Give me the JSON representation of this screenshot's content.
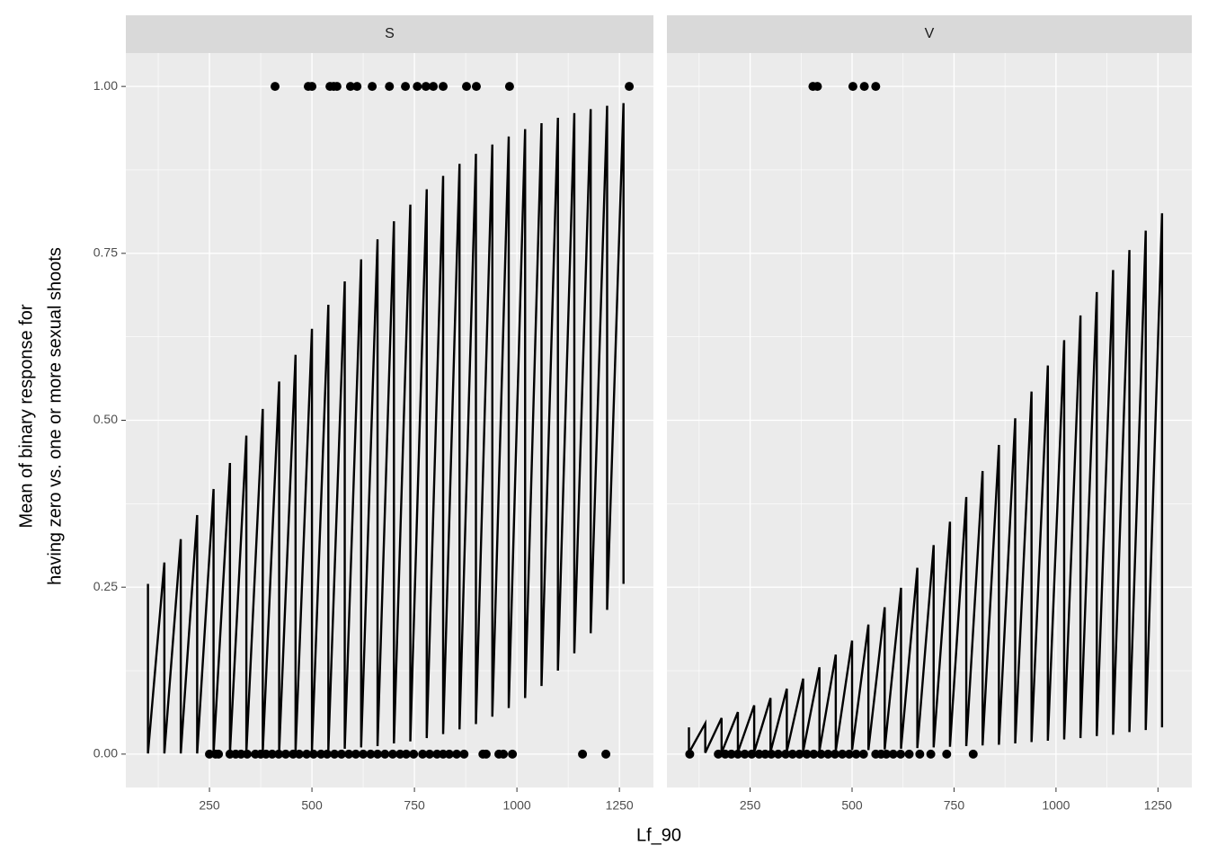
{
  "chart_data": [
    {
      "type": "scatter",
      "title": "S",
      "xlabel": "Lf_90",
      "ylabel": [
        "Mean of binary response for",
        "having zero vs. one or more sexual shoots"
      ],
      "xlim": [
        46,
        1333
      ],
      "xticks": [
        250,
        500,
        750,
        1000,
        1250
      ],
      "xminor": [
        125,
        375,
        625,
        875,
        1125
      ],
      "ylim": [
        -0.05,
        1.05
      ],
      "yticks": [
        {
          "value": 0,
          "label": "0.00"
        },
        {
          "value": 0.25,
          "label": "0.25"
        },
        {
          "value": 0.5,
          "label": "0.50"
        },
        {
          "value": 0.75,
          "label": "0.75"
        },
        {
          "value": 1,
          "label": "1.00"
        }
      ],
      "yminor": [
        0.125,
        0.375,
        0.625,
        0.875
      ],
      "grid": true,
      "series": [
        {
          "type": "line",
          "color": "#000000",
          "x": [
            100,
            100,
            140,
            140,
            180,
            180,
            220,
            220,
            260,
            260,
            300,
            300,
            340,
            340,
            380,
            380,
            420,
            420,
            460,
            460,
            500,
            500,
            540,
            540,
            580,
            580,
            620,
            620,
            660,
            660,
            700,
            700,
            740,
            740,
            780,
            780,
            820,
            820,
            860,
            860,
            900,
            900,
            940,
            940,
            980,
            980,
            1020,
            1020,
            1060,
            1060,
            1100,
            1100,
            1140,
            1140,
            1180,
            1180,
            1220,
            1220,
            1260,
            1260
          ],
          "values": [
            0.255,
            0.001,
            0.287,
            0.001,
            0.322,
            0.001,
            0.358,
            0.001,
            0.397,
            0.001,
            0.436,
            0.002,
            0.477,
            0.002,
            0.517,
            0.003,
            0.558,
            0.003,
            0.598,
            0.004,
            0.637,
            0.005,
            0.673,
            0.006,
            0.708,
            0.008,
            0.741,
            0.01,
            0.771,
            0.012,
            0.798,
            0.016,
            0.823,
            0.019,
            0.846,
            0.024,
            0.866,
            0.03,
            0.884,
            0.037,
            0.899,
            0.045,
            0.913,
            0.056,
            0.925,
            0.069,
            0.936,
            0.084,
            0.945,
            0.102,
            0.953,
            0.125,
            0.96,
            0.151,
            0.966,
            0.181,
            0.971,
            0.216,
            0.975,
            0.255
          ]
        },
        {
          "type": "scatter",
          "color": "#000000",
          "x": [
            410,
            491,
            500,
            544,
            553,
            561,
            594,
            610,
            647,
            689,
            728,
            757,
            778,
            796,
            820,
            877,
            901,
            982,
            1274
          ],
          "values": [
            1,
            1,
            1,
            1,
            1,
            1,
            1,
            1,
            1,
            1,
            1,
            1,
            1,
            1,
            1,
            1,
            1,
            1,
            1
          ]
        },
        {
          "type": "scatter",
          "color": "#000000",
          "x": [
            250,
            265,
            272,
            300,
            314,
            327,
            342,
            362,
            375,
            388,
            403,
            419,
            436,
            454,
            469,
            487,
            504,
            522,
            537,
            555,
            572,
            590,
            607,
            625,
            643,
            660,
            678,
            697,
            715,
            730,
            748,
            770,
            787,
            805,
            820,
            835,
            853,
            871,
            917,
            925,
            956,
            967,
            989,
            1160,
            1217
          ],
          "values": [
            0,
            0,
            0,
            0,
            0,
            0,
            0,
            0,
            0,
            0,
            0,
            0,
            0,
            0,
            0,
            0,
            0,
            0,
            0,
            0,
            0,
            0,
            0,
            0,
            0,
            0,
            0,
            0,
            0,
            0,
            0,
            0,
            0,
            0,
            0,
            0,
            0,
            0,
            0,
            0,
            0,
            0,
            0,
            0,
            0
          ]
        }
      ]
    },
    {
      "type": "scatter",
      "title": "V",
      "xlim": [
        46,
        1333
      ],
      "xticks": [
        250,
        500,
        750,
        1000,
        1250
      ],
      "xminor": [
        125,
        375,
        625,
        875,
        1125
      ],
      "ylim": [
        -0.05,
        1.05
      ],
      "yticks": [
        {
          "value": 0,
          "label": "0.00"
        },
        {
          "value": 0.25,
          "label": "0.25"
        },
        {
          "value": 0.5,
          "label": "0.50"
        },
        {
          "value": 0.75,
          "label": "0.75"
        },
        {
          "value": 1,
          "label": "1.00"
        }
      ],
      "yminor": [
        0.125,
        0.375,
        0.625,
        0.875
      ],
      "grid": true,
      "series": [
        {
          "type": "line",
          "color": "#000000",
          "x": [
            100,
            100,
            140,
            140,
            180,
            180,
            220,
            220,
            260,
            260,
            300,
            300,
            340,
            340,
            380,
            380,
            420,
            420,
            460,
            460,
            500,
            500,
            540,
            540,
            580,
            580,
            620,
            620,
            660,
            660,
            700,
            700,
            740,
            740,
            780,
            780,
            820,
            820,
            860,
            860,
            900,
            900,
            940,
            940,
            980,
            980,
            1020,
            1020,
            1060,
            1060,
            1100,
            1100,
            1140,
            1140,
            1180,
            1180,
            1220,
            1220,
            1260,
            1260
          ],
          "values": [
            0.04,
            0.002,
            0.046,
            0.002,
            0.054,
            0.002,
            0.063,
            0.003,
            0.073,
            0.003,
            0.084,
            0.003,
            0.098,
            0.004,
            0.113,
            0.004,
            0.13,
            0.005,
            0.149,
            0.005,
            0.17,
            0.006,
            0.194,
            0.006,
            0.22,
            0.007,
            0.249,
            0.008,
            0.279,
            0.009,
            0.313,
            0.01,
            0.348,
            0.011,
            0.385,
            0.012,
            0.424,
            0.013,
            0.463,
            0.014,
            0.503,
            0.016,
            0.543,
            0.018,
            0.582,
            0.02,
            0.62,
            0.022,
            0.657,
            0.024,
            0.692,
            0.027,
            0.725,
            0.029,
            0.755,
            0.033,
            0.784,
            0.036,
            0.81,
            0.04
          ]
        },
        {
          "type": "scatter",
          "color": "#000000",
          "x": [
            404,
            415,
            502,
            530,
            558
          ],
          "values": [
            1,
            1,
            1,
            1,
            1
          ]
        },
        {
          "type": "scatter",
          "color": "#000000",
          "x": [
            102,
            172,
            189,
            204,
            220,
            237,
            254,
            272,
            287,
            302,
            319,
            337,
            354,
            371,
            389,
            406,
            424,
            441,
            458,
            476,
            493,
            510,
            528,
            558,
            571,
            584,
            601,
            619,
            640,
            666,
            693,
            732,
            797
          ],
          "values": [
            0,
            0,
            0,
            0,
            0,
            0,
            0,
            0,
            0,
            0,
            0,
            0,
            0,
            0,
            0,
            0,
            0,
            0,
            0,
            0,
            0,
            0,
            0,
            0,
            0,
            0,
            0,
            0,
            0,
            0,
            0,
            0,
            0
          ]
        }
      ]
    }
  ]
}
